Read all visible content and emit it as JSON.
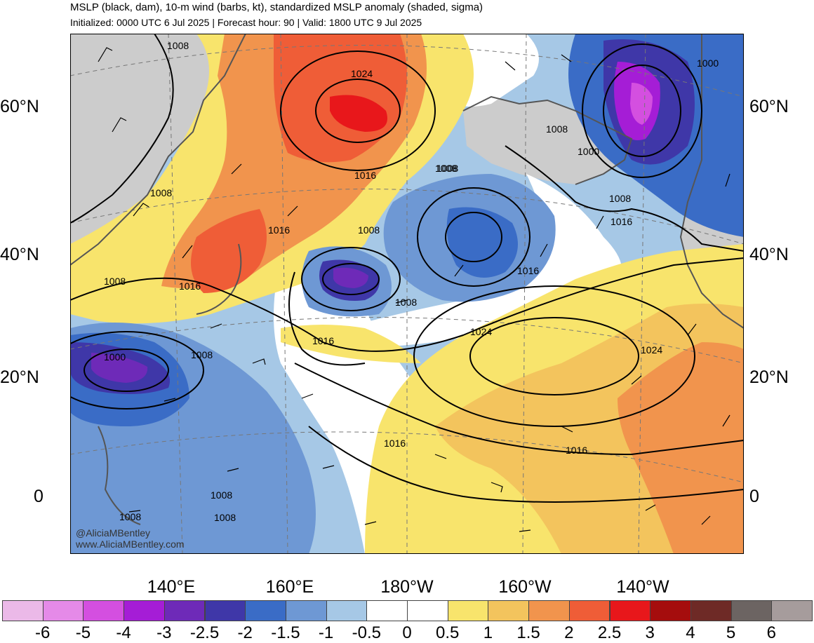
{
  "title": "MSLP (black, dam), 10-m wind (barbs, kt), standardized MSLP anomaly (shaded, sigma)",
  "subtitle": "Initialized: 0000 UTC 6 Jul 2025 | Forecast hour: 90 | Valid: 1800 UTC 9 Jul 2025",
  "lat_labels": [
    "60°N",
    "40°N",
    "20°N",
    "0"
  ],
  "lon_labels": [
    "140°E",
    "160°E",
    "180°W",
    "160°W",
    "140°W"
  ],
  "colorbar": {
    "ticks": [
      "-6",
      "-5",
      "-4",
      "-3",
      "-2.5",
      "-2",
      "-1.5",
      "-1",
      "-0.5",
      "0",
      "0.5",
      "1",
      "1.5",
      "2",
      "2.5",
      "3",
      "4",
      "5",
      "6"
    ],
    "colors": [
      "#ebb9e8",
      "#e58ae8",
      "#d44fe0",
      "#a51dd6",
      "#6e2ab8",
      "#3f37a8",
      "#3a6cc6",
      "#6e98d4",
      "#a6c8e6",
      "#ffffff",
      "#ffffff",
      "#f8e46c",
      "#f3c45d",
      "#f1944d",
      "#ef5d37",
      "#e8171b",
      "#a50d0d",
      "#6e2a26",
      "#6c6462",
      "#a69c9c"
    ]
  },
  "credits": [
    "@AliciaMBentley",
    "www.AliciaMBentley.com"
  ],
  "map": {
    "land_color": "#cccccc",
    "contour_labels": [
      "1008",
      "1024",
      "1016",
      "1008",
      "1008",
      "1016",
      "1008",
      "1016",
      "1008",
      "1016",
      "1008",
      "1008",
      "1000",
      "1000",
      "1008",
      "1016",
      "1016",
      "1024",
      "1024",
      "1016",
      "1016",
      "1008",
      "1000",
      "1008",
      "1008",
      "1008",
      "1008"
    ]
  }
}
